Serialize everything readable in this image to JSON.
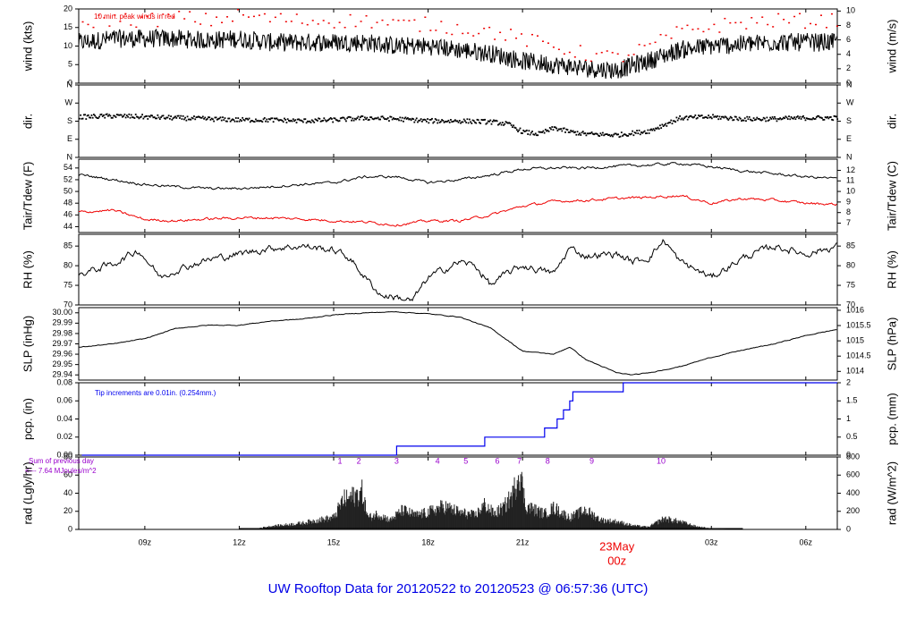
{
  "title": "UW Rooftop Data for 20120522  to  20120523 @ 06:57:36  (UTC)",
  "colors": {
    "primary": "#000000",
    "secondary": "#ee0000",
    "precip": "#0000ee",
    "note": "#9900cc",
    "title": "#0000e6"
  },
  "time_axis": {
    "ticks": [
      "09z",
      "12z",
      "15z",
      "18z",
      "21z",
      "03z",
      "06z"
    ],
    "day_label": "23May",
    "midnight_label": "00z",
    "start_hour": 6.9,
    "end_hour": 31.0
  },
  "chart_data": [
    {
      "type": "line",
      "panel": "wind",
      "ylabel": "wind (kts)",
      "ylabel_right": "wind (m/s)",
      "ylim": [
        0,
        20
      ],
      "yticks": [
        "0",
        "5",
        "10",
        "15",
        "20"
      ],
      "yticks_right": [
        "0",
        "2",
        "4",
        "6",
        "8",
        "10"
      ],
      "annotation": "10 min. peak winds in red",
      "series": [
        {
          "x": [
            7,
            8,
            9,
            10,
            11,
            12,
            13,
            14,
            15,
            16,
            17,
            18,
            19,
            20,
            21,
            22,
            23,
            24,
            25,
            26,
            27,
            28,
            29,
            30,
            31
          ],
          "y": [
            11,
            12,
            12,
            12,
            11.5,
            12,
            11,
            11,
            11,
            11,
            10,
            10,
            9,
            8,
            6,
            5,
            4,
            3.5,
            6,
            9,
            10,
            10.5,
            11,
            11,
            11
          ]
        },
        {
          "x": [
            7,
            8,
            9,
            10,
            11,
            12,
            13,
            14,
            15,
            16,
            17,
            18,
            19,
            20,
            21,
            22,
            23,
            24,
            25,
            26,
            27,
            28,
            29,
            30,
            31
          ],
          "y": [
            16.5,
            17.5,
            17,
            18,
            17,
            18.5,
            17.5,
            17,
            17,
            17,
            16,
            16,
            15,
            14,
            12,
            10,
            8,
            7,
            10,
            14,
            15.5,
            16.5,
            17,
            17,
            17
          ]
        }
      ]
    },
    {
      "type": "scatter",
      "panel": "dir",
      "ylabel": "dir.",
      "ylabel_right": "dir.",
      "ylim": [
        0,
        360
      ],
      "yticks": [
        "N",
        "E",
        "S",
        "W",
        "N"
      ],
      "series": [
        {
          "x": [
            7,
            8,
            9,
            10,
            11,
            12,
            13,
            14,
            15,
            16,
            17,
            18,
            19,
            20,
            20.5,
            21,
            21.5,
            22,
            22.5,
            23,
            24,
            25,
            26,
            27,
            28,
            29,
            30,
            31
          ],
          "y": [
            205,
            210,
            205,
            200,
            195,
            190,
            190,
            185,
            190,
            200,
            195,
            185,
            185,
            180,
            170,
            130,
            120,
            150,
            130,
            120,
            115,
            135,
            200,
            205,
            195,
            195,
            200,
            200
          ]
        }
      ]
    },
    {
      "type": "line",
      "panel": "temp",
      "ylabel": "Tair/Tdew (F)",
      "ylabel_right": "Tair/Tdew (C)",
      "ylim": [
        43,
        55.5
      ],
      "yticks": [
        "44",
        "46",
        "48",
        "50",
        "52",
        "54"
      ],
      "yticks_right": [
        "7",
        "8",
        "9",
        "10",
        "11",
        "12"
      ],
      "series": [
        {
          "x": [
            7,
            8,
            9,
            10,
            11,
            12,
            13,
            14,
            15,
            16,
            17,
            18,
            19,
            20,
            21,
            22,
            23,
            24,
            25,
            26,
            27,
            28,
            29,
            30,
            31
          ],
          "y": [
            52.8,
            52.0,
            51.2,
            50.8,
            50.5,
            50.5,
            50.8,
            51.2,
            51.5,
            52.5,
            52.5,
            51.5,
            52.0,
            52.8,
            53.8,
            54.0,
            54.0,
            54.3,
            54.5,
            54.8,
            54.2,
            53.5,
            53.0,
            52.5,
            52.2
          ]
        },
        {
          "x": [
            7,
            8,
            9,
            10,
            11,
            12,
            13,
            14,
            15,
            16,
            17,
            18,
            19,
            20,
            21,
            22,
            23,
            24,
            25,
            26,
            27,
            28,
            29,
            30,
            31
          ],
          "y": [
            46.5,
            46.8,
            45.2,
            45.0,
            45.3,
            45.5,
            45.5,
            45.3,
            45.0,
            44.8,
            44.3,
            45.0,
            45.0,
            46.0,
            47.5,
            48.3,
            48.5,
            48.8,
            49.0,
            49.3,
            48.0,
            48.8,
            48.5,
            48.0,
            47.8
          ]
        }
      ]
    },
    {
      "type": "line",
      "panel": "rh",
      "ylabel": "RH (%)",
      "ylabel_right": "RH (%)",
      "ylim": [
        70,
        88
      ],
      "yticks": [
        "70",
        "75",
        "80",
        "85"
      ],
      "yticks_right": [
        "70",
        "75",
        "80",
        "85"
      ],
      "series": [
        {
          "x": [
            7,
            8,
            8.8,
            9.5,
            10,
            11,
            12,
            13,
            14,
            15,
            15.5,
            16,
            16.5,
            17,
            17.5,
            18,
            19,
            19.5,
            20,
            20.5,
            21,
            22,
            22.5,
            23,
            24,
            24.5,
            25,
            25.5,
            26,
            27,
            28,
            29,
            30,
            31
          ],
          "y": [
            78,
            80.5,
            84,
            77,
            79,
            81.5,
            83,
            84.5,
            85,
            84,
            82,
            77,
            72.5,
            72,
            71,
            77,
            81,
            80,
            75,
            78,
            80,
            78,
            84.5,
            82.5,
            83,
            81,
            82,
            86.5,
            81,
            77,
            82,
            85,
            83,
            85
          ]
        }
      ]
    },
    {
      "type": "line",
      "panel": "slp",
      "ylabel": "SLP (inHg)",
      "ylabel_right": "SLP (hPa)",
      "ylim": [
        29.935,
        30.005
      ],
      "yticks": [
        "29.94",
        "29.95",
        "29.96",
        "29.97",
        "29.98",
        "29.99",
        "30.00"
      ],
      "yticks_right": [
        "1014",
        "1014.5",
        "1015",
        "1015.5",
        "1016"
      ],
      "series": [
        {
          "x": [
            7,
            8,
            9,
            10,
            11,
            12,
            13,
            14,
            15,
            16,
            17,
            18,
            19,
            20,
            21,
            22,
            22.5,
            23,
            24,
            24.5,
            25,
            26,
            27,
            28,
            29,
            30,
            31
          ],
          "y": [
            29.967,
            29.97,
            29.975,
            29.985,
            29.988,
            29.988,
            29.992,
            29.994,
            29.998,
            30.0,
            30.001,
            29.999,
            29.996,
            29.985,
            29.963,
            29.96,
            29.967,
            29.955,
            29.942,
            29.94,
            29.942,
            29.948,
            29.957,
            29.964,
            29.97,
            29.978,
            29.984
          ]
        }
      ]
    },
    {
      "type": "line",
      "panel": "pcp",
      "ylabel": "pcp. (in)",
      "ylabel_right": "pcp. (mm)",
      "ylim": [
        0,
        0.08
      ],
      "yticks": [
        "0.00",
        "0.02",
        "0.04",
        "0.06",
        "0.08"
      ],
      "yticks_right": [
        "0",
        "0.5",
        "1",
        "1.5",
        "2"
      ],
      "annotation": "Tip increments are 0.01in. (0.254mm.)",
      "series": [
        {
          "x": [
            7,
            17.0,
            17.0,
            19.8,
            19.8,
            21.7,
            21.7,
            22.1,
            22.1,
            22.3,
            22.3,
            22.5,
            22.5,
            22.6,
            22.6,
            24.2,
            24.2,
            31
          ],
          "y": [
            0,
            0,
            0.01,
            0.01,
            0.02,
            0.02,
            0.03,
            0.03,
            0.04,
            0.04,
            0.05,
            0.05,
            0.06,
            0.06,
            0.07,
            0.07,
            0.08,
            0.08
          ]
        }
      ]
    },
    {
      "type": "area",
      "panel": "rad",
      "ylabel": "rad (Lgly/hr)",
      "ylabel_right": "rad (W/m^2)",
      "ylim": [
        0,
        80
      ],
      "yticks": [
        "0",
        "20",
        "40",
        "60",
        "80"
      ],
      "yticks_right": [
        "0",
        "200",
        "400",
        "600",
        "800"
      ],
      "note_line1": "Sum of previous day",
      "note_line2": "<--- 7.64 MJoules/m^2",
      "marker_labels": [
        "1",
        "2",
        "3",
        "4",
        "5",
        "6",
        "7",
        "8",
        "9",
        "10"
      ],
      "marker_hours": [
        15.2,
        15.8,
        17.0,
        18.3,
        19.2,
        20.2,
        20.9,
        21.8,
        23.2,
        25.4
      ],
      "series": [
        {
          "x": [
            7,
            12.0,
            12.5,
            13,
            13.5,
            14,
            14.5,
            15,
            15.3,
            15.6,
            15.9,
            16.1,
            16.4,
            16.8,
            17.2,
            17.6,
            18,
            18.5,
            19,
            19.5,
            19.8,
            20.1,
            20.4,
            20.7,
            20.9,
            21.1,
            21.4,
            21.7,
            22.0,
            22.5,
            23,
            23.5,
            24,
            24.5,
            25,
            25.5,
            26,
            26.5,
            27,
            27.5,
            31
          ],
          "y": [
            0,
            0,
            1,
            4,
            6,
            8,
            12,
            15,
            38,
            42,
            48,
            15,
            20,
            12,
            25,
            18,
            22,
            30,
            22,
            18,
            32,
            20,
            28,
            45,
            78,
            30,
            25,
            20,
            28,
            15,
            25,
            12,
            10,
            5,
            3,
            14,
            10,
            4,
            1,
            0,
            0
          ]
        }
      ]
    }
  ]
}
